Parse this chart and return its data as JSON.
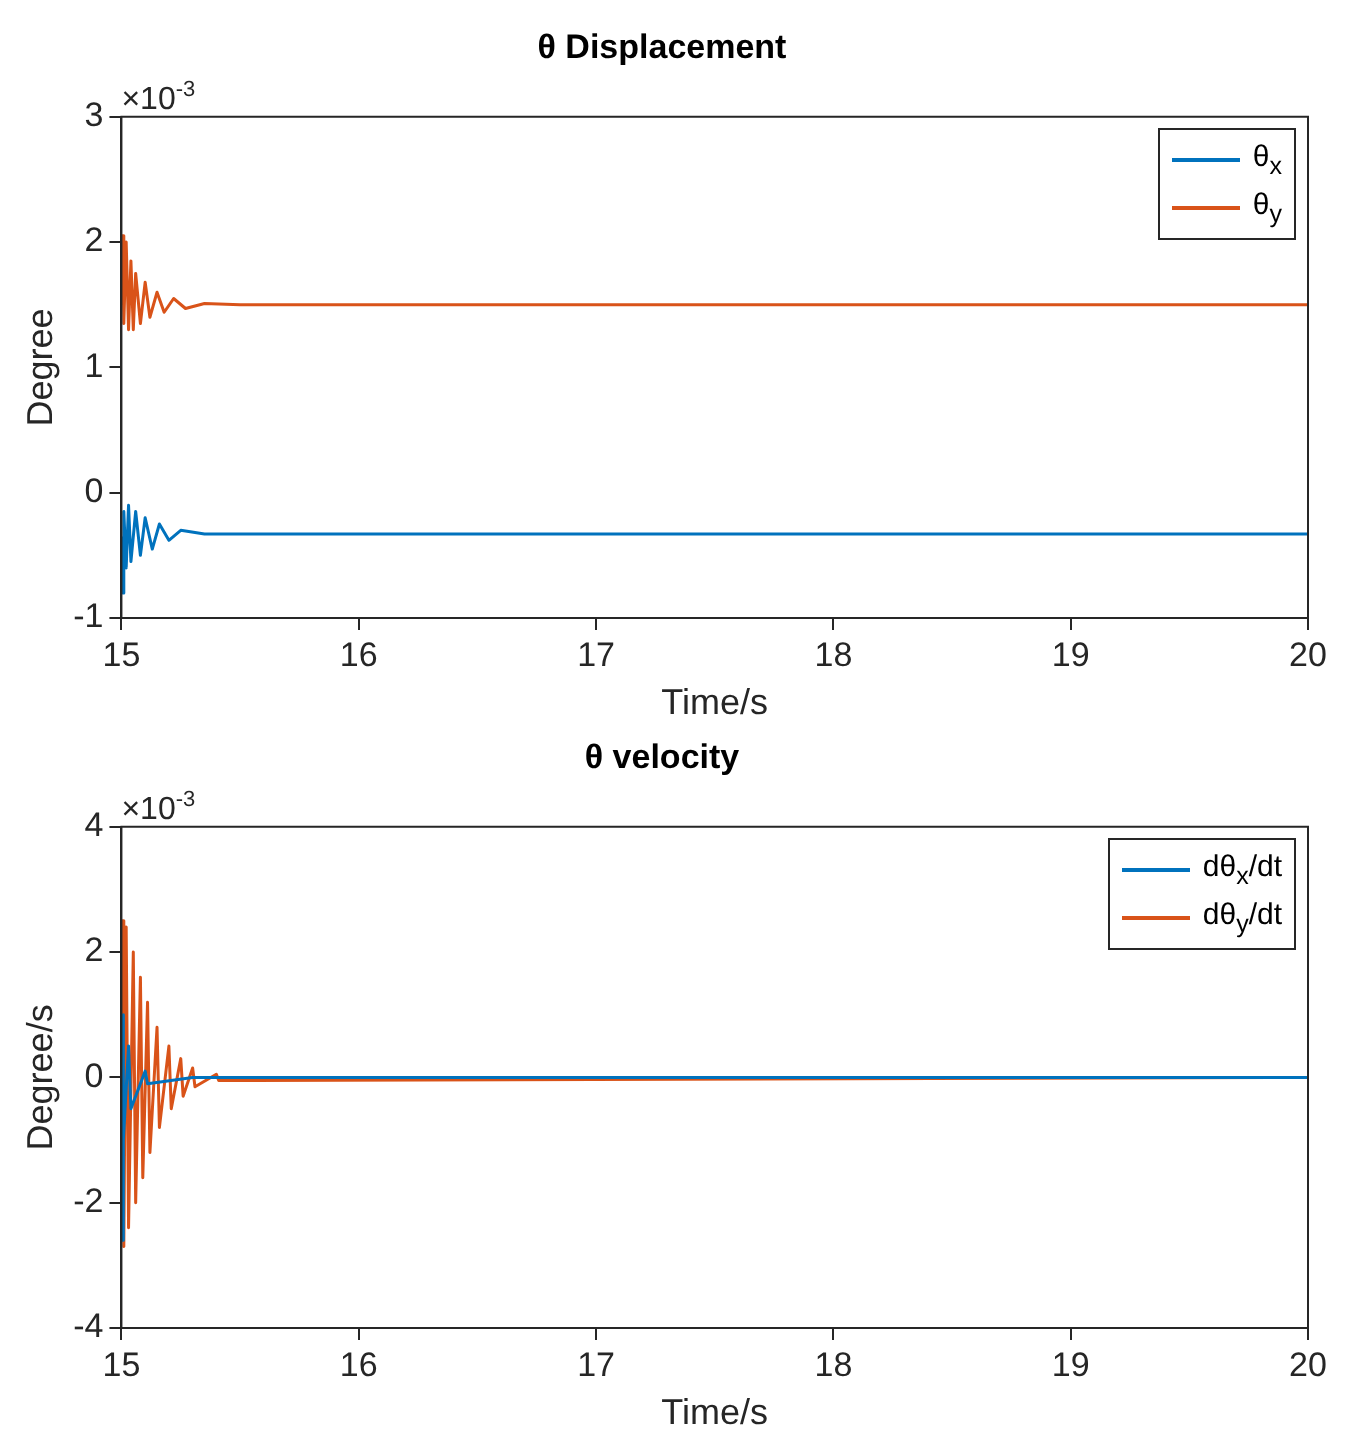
{
  "chart_data": [
    {
      "type": "line",
      "title": "θ Displacement",
      "xlabel": "Time/s",
      "ylabel": "Degree",
      "annotations": [
        "×10$^{-3}$"
      ],
      "xlim": [
        15,
        20
      ],
      "xticks": [
        15,
        16,
        17,
        18,
        19,
        20
      ],
      "ylim": [
        -1,
        3
      ],
      "yticks": [
        -1,
        0,
        1,
        2,
        3
      ],
      "grid": false,
      "legend": "top right",
      "marker": "none",
      "line_style": "solid",
      "series": [
        {
          "name": "θ$_{x}$",
          "color": "#0072bd",
          "x": [
            15,
            15.005,
            15.01,
            15.02,
            15.03,
            15.04,
            15.06,
            15.08,
            15.1,
            15.13,
            15.16,
            15.2,
            15.25,
            15.35,
            20
          ],
          "values": [
            -0.35,
            -0.8,
            -0.15,
            -0.6,
            -0.1,
            -0.55,
            -0.15,
            -0.5,
            -0.2,
            -0.45,
            -0.25,
            -0.38,
            -0.3,
            -0.33,
            -0.33
          ]
        },
        {
          "name": "θ$_{y}$",
          "color": "#d95319",
          "x": [
            15,
            15.005,
            15.01,
            15.02,
            15.03,
            15.04,
            15.05,
            15.06,
            15.08,
            15.1,
            15.12,
            15.15,
            15.18,
            15.22,
            15.27,
            15.35,
            15.5,
            20
          ],
          "values": [
            1.5,
            2.05,
            1.35,
            2.0,
            1.3,
            1.85,
            1.3,
            1.75,
            1.35,
            1.68,
            1.4,
            1.6,
            1.44,
            1.55,
            1.47,
            1.51,
            1.5,
            1.5
          ]
        }
      ]
    },
    {
      "type": "line",
      "title": "θ velocity",
      "xlabel": "Time/s",
      "ylabel": "Degree/s",
      "annotations": [
        "×10$^{-3}$"
      ],
      "xlim": [
        15,
        20
      ],
      "xticks": [
        15,
        16,
        17,
        18,
        19,
        20
      ],
      "ylim": [
        -4,
        4
      ],
      "yticks": [
        -4,
        -2,
        0,
        2,
        4
      ],
      "grid": false,
      "legend": "top right",
      "marker": "none",
      "line_style": "solid",
      "series": [
        {
          "name": "dθ$_{x}$/dt",
          "color": "#0072bd",
          "x": [
            15,
            15.003,
            15.006,
            15.01,
            15.03,
            15.04,
            15.1,
            15.11,
            15.3,
            20
          ],
          "values": [
            0,
            -2.6,
            1.0,
            -1.0,
            0.5,
            -0.5,
            0.1,
            -0.1,
            0,
            0
          ]
        },
        {
          "name": "dθ$_{y}$/dt",
          "color": "#d95319",
          "x": [
            15,
            15.005,
            15.01,
            15.02,
            15.03,
            15.05,
            15.06,
            15.08,
            15.09,
            15.11,
            15.12,
            15.15,
            15.16,
            15.2,
            15.21,
            15.25,
            15.26,
            15.3,
            15.31,
            15.4,
            15.41,
            20
          ],
          "values": [
            0,
            2.5,
            -2.7,
            2.4,
            -2.4,
            2.0,
            -2.0,
            1.6,
            -1.6,
            1.2,
            -1.2,
            0.8,
            -0.8,
            0.5,
            -0.5,
            0.3,
            -0.3,
            0.15,
            -0.15,
            0.05,
            -0.05,
            0
          ]
        }
      ]
    }
  ]
}
